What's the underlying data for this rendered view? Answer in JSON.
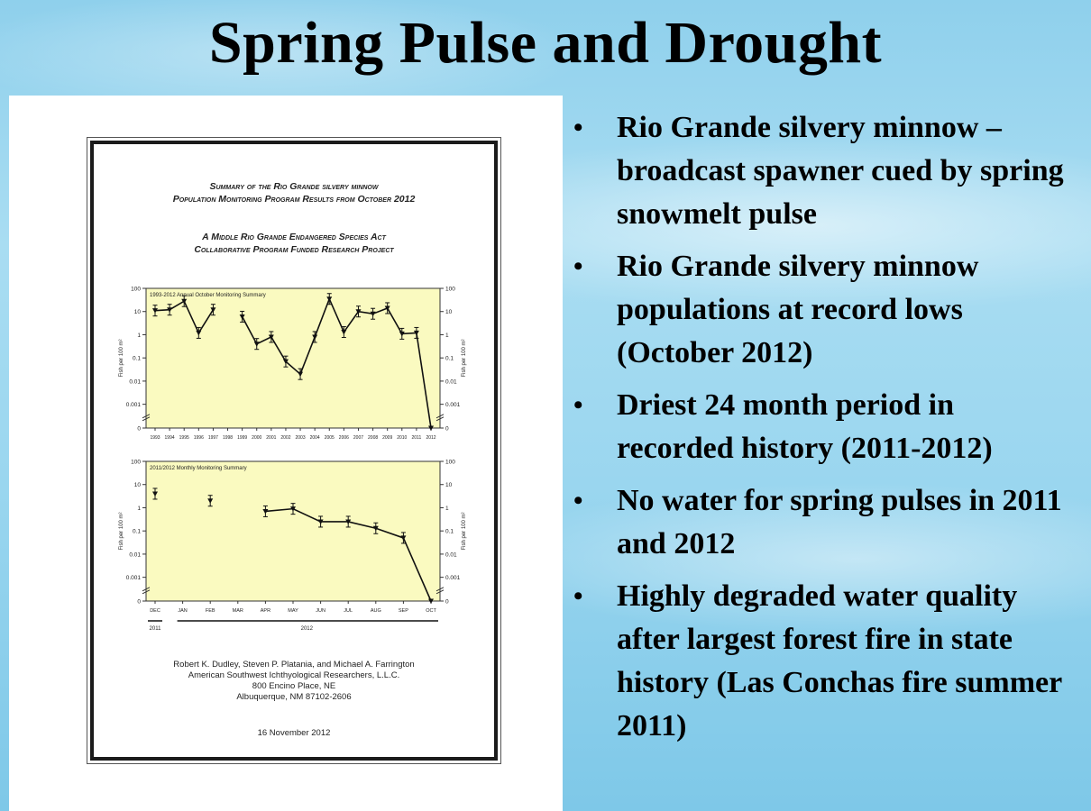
{
  "title": "Spring Pulse and Drought",
  "document": {
    "title_line1": "Summary of the Rio Grande silvery minnow",
    "title_line2": "Population Monitoring Program Results from October 2012",
    "subtitle_line1": "A Middle Rio Grande Endangered Species Act",
    "subtitle_line2": "Collaborative Program Funded Research Project",
    "authors_line1": "Robert K. Dudley, Steven P. Platania, and Michael A. Farrington",
    "authors_line2": "American Southwest Ichthyological Researchers, L.L.C.",
    "authors_line3": "800 Encino Place, NE",
    "authors_line4": "Albuquerque, NM  87102-2606",
    "date": "16 November 2012"
  },
  "chart_data": [
    {
      "type": "line",
      "title": "1993-2012 Annual October Monitoring Summary",
      "ylabel": "Fish per 100 m²",
      "y_scale": "log",
      "y_ticks": [
        "100",
        "10",
        "1",
        "0.1",
        "0.01",
        "0.001",
        "0"
      ],
      "x": [
        "1993",
        "1994",
        "1995",
        "1996",
        "1997",
        "1998",
        "1999",
        "2000",
        "2001",
        "2002",
        "2003",
        "2004",
        "2005",
        "2006",
        "2007",
        "2008",
        "2009",
        "2010",
        "2011",
        "2012"
      ],
      "values": [
        11,
        12,
        28,
        1.2,
        12,
        null,
        6,
        0.4,
        0.8,
        0.07,
        0.02,
        0.8,
        35,
        1.3,
        10,
        8,
        14,
        1.1,
        1.2,
        0
      ],
      "ylim": [
        0,
        100
      ],
      "grid": false
    },
    {
      "type": "line",
      "title": "2011/2012 Monthly Monitoring Summary",
      "ylabel": "Fish per 100 m²",
      "y_scale": "log",
      "y_ticks": [
        "100",
        "10",
        "1",
        "0.1",
        "0.01",
        "0.001",
        "0"
      ],
      "x": [
        "DEC",
        "JAN",
        "FEB",
        "MAR",
        "APR",
        "MAY",
        "JUN",
        "JUL",
        "AUG",
        "SEP",
        "OCT"
      ],
      "values": [
        4,
        null,
        2,
        null,
        0.7,
        0.9,
        0.25,
        0.25,
        0.13,
        0.05,
        0
      ],
      "year_labels": [
        "2011",
        "2012"
      ],
      "ylim": [
        0,
        100
      ],
      "grid": false
    }
  ],
  "bullets": [
    "Rio Grande silvery minnow – broadcast spawner cued by spring snowmelt pulse",
    "Rio Grande silvery minnow populations at record lows (October 2012)",
    "Driest 24 month period in recorded history (2011-2012)",
    "No water for spring pulses in 2011 and 2012",
    "Highly degraded water quality after largest forest fire in state history (Las Conchas fire summer 2011)"
  ],
  "colors": {
    "plot_bg": "#fafac0",
    "bullet_text": "#000000"
  }
}
